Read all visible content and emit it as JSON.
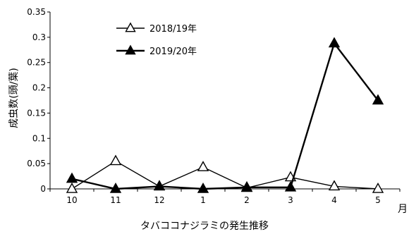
{
  "chart_data": {
    "type": "line",
    "categories": [
      "10",
      "11",
      "12",
      "1",
      "2",
      "3",
      "4",
      "5"
    ],
    "xlabel": "タバココナジラミの発生推移",
    "x_unit": "月",
    "ylabel": "成虫数(頭/葉)",
    "ylim": [
      0,
      0.35
    ],
    "yticks": [
      "0",
      "0.05",
      "0.1",
      "0.15",
      "0.2",
      "0.25",
      "0.3",
      "0.35"
    ],
    "grid": false,
    "legend_position": "top-left",
    "series": [
      {
        "name": "2018/19年",
        "marker": "open-triangle",
        "color": "#000000",
        "values": [
          0.0,
          0.055,
          0.005,
          0.043,
          0.002,
          0.023,
          0.005,
          0.0
        ]
      },
      {
        "name": "2019/20年",
        "marker": "filled-triangle",
        "color": "#000000",
        "values": [
          0.02,
          0.0,
          0.005,
          0.0,
          0.003,
          0.003,
          0.288,
          0.175
        ]
      }
    ]
  }
}
